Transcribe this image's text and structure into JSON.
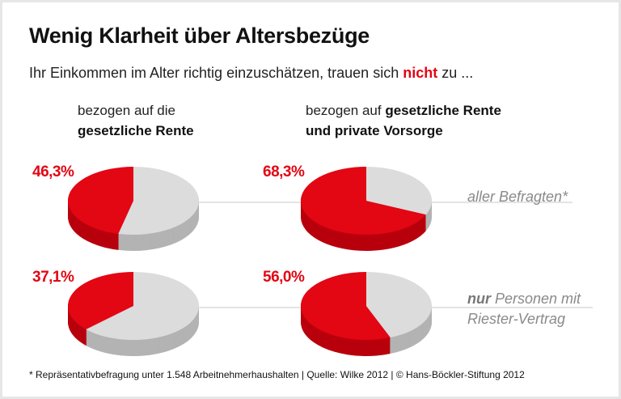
{
  "title": "Wenig Klarheit über Altersbezüge",
  "subtitle": {
    "before": "Ihr Einkommen im Alter richtig einzuschätzen, trauen sich ",
    "highlight": "nicht",
    "after": " zu ..."
  },
  "columns": [
    {
      "line1": "bezogen auf die",
      "line2_bold": "gesetzliche Rente",
      "line1_bold": ""
    },
    {
      "line1": "bezogen auf ",
      "line1_bold": "gesetzliche Rente",
      "line2_bold": "und private Vorsorge"
    }
  ],
  "rows": [
    {
      "label": "aller Befragten*"
    },
    {
      "label_bold": "nur",
      "label": " Personen mit",
      "label2": "Riester-Vertrag"
    }
  ],
  "footnote": "* Repräsentativbefragung unter 1.548 Arbeitnehmerhaushalten | Quelle: Wilke 2012 | © Hans-Böckler-Stiftung 2012",
  "colors": {
    "highlight": "#e30613",
    "rest": "#dcdcdc",
    "accent_text": "#e30613"
  },
  "chart_data": {
    "type": "pie",
    "style": "3d",
    "pies": [
      {
        "row": "aller Befragten*",
        "column": "gesetzliche Rente",
        "value": 46.3,
        "label": "46,3%"
      },
      {
        "row": "aller Befragten*",
        "column": "gesetzliche Rente und private Vorsorge",
        "value": 68.3,
        "label": "68,3%"
      },
      {
        "row": "nur Personen mit Riester-Vertrag",
        "column": "gesetzliche Rente",
        "value": 37.1,
        "label": "37,1%"
      },
      {
        "row": "nur Personen mit Riester-Vertrag",
        "column": "gesetzliche Rente und private Vorsorge",
        "value": 56.0,
        "label": "56,0%"
      }
    ]
  }
}
